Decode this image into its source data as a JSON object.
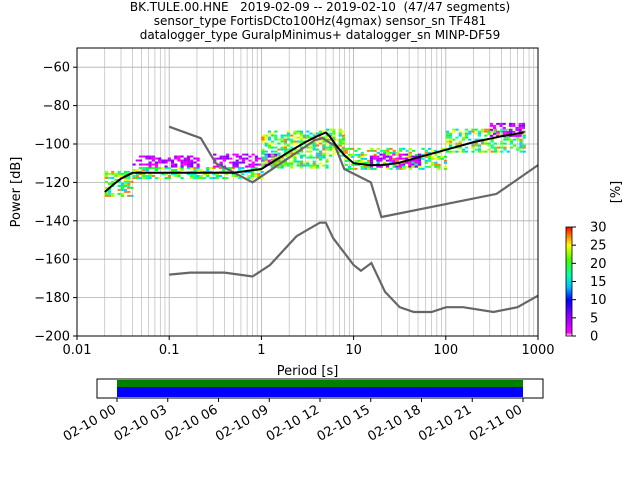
{
  "title_lines": [
    "BK.TULE.00.HNE   2019-02-09 -- 2019-02-10  (47/47 segments)",
    "sensor_type FortisDCto100Hz(4gmax) sensor_sn TF481",
    "datalogger_type GuralpMinimus+ datalogger_sn MINP-DF59"
  ],
  "chart_data": {
    "type": "heatmap",
    "xlabel": "Period [s]",
    "ylabel": "Power [dB]",
    "xscale": "log",
    "xlim": [
      0.01,
      1000
    ],
    "ylim": [
      -200,
      -50
    ],
    "x_ticks": [
      {
        "value": 0.01,
        "label": "0.01"
      },
      {
        "value": 0.1,
        "label": "0.1"
      },
      {
        "value": 1,
        "label": "1"
      },
      {
        "value": 10,
        "label": "10"
      },
      {
        "value": 100,
        "label": "100"
      },
      {
        "value": 1000,
        "label": "1000"
      }
    ],
    "y_ticks": [
      {
        "value": -60,
        "label": "−60"
      },
      {
        "value": -80,
        "label": "−80"
      },
      {
        "value": -100,
        "label": "−100"
      },
      {
        "value": -120,
        "label": "−120"
      },
      {
        "value": -140,
        "label": "−140"
      },
      {
        "value": -160,
        "label": "−160"
      },
      {
        "value": -180,
        "label": "−180"
      },
      {
        "value": -200,
        "label": "−200"
      }
    ],
    "grid": true,
    "colorbar": {
      "label": "[%]",
      "range": [
        0,
        30
      ],
      "ticks": [
        {
          "value": 0,
          "label": "0"
        },
        {
          "value": 5,
          "label": "5"
        },
        {
          "value": 10,
          "label": "10"
        },
        {
          "value": 15,
          "label": "15"
        },
        {
          "value": 20,
          "label": "20"
        },
        {
          "value": 25,
          "label": "25"
        },
        {
          "value": 30,
          "label": "30"
        }
      ]
    },
    "series": [
      {
        "role": "high-noise-model",
        "color": "#666666",
        "points": [
          [
            0.1,
            -91
          ],
          [
            0.22,
            -97
          ],
          [
            0.32,
            -110
          ],
          [
            0.8,
            -120
          ],
          [
            3.8,
            -98
          ],
          [
            4.6,
            -97
          ],
          [
            6.3,
            -101
          ],
          [
            7.9,
            -113
          ],
          [
            15.4,
            -120
          ],
          [
            20,
            -138
          ],
          [
            354.8,
            -126
          ],
          [
            1000,
            -111
          ]
        ]
      },
      {
        "role": "low-noise-model",
        "color": "#666666",
        "points": [
          [
            0.1,
            -168
          ],
          [
            0.17,
            -167
          ],
          [
            0.4,
            -167
          ],
          [
            0.8,
            -169
          ],
          [
            1.24,
            -163
          ],
          [
            2.4,
            -148
          ],
          [
            4.3,
            -141
          ],
          [
            5,
            -141
          ],
          [
            6,
            -149
          ],
          [
            10,
            -163
          ],
          [
            12,
            -166
          ],
          [
            15.6,
            -162
          ],
          [
            21.9,
            -177
          ],
          [
            31.6,
            -185
          ],
          [
            45,
            -187.5
          ],
          [
            70,
            -187.5
          ],
          [
            101,
            -185
          ],
          [
            154,
            -185
          ],
          [
            328,
            -187.5
          ],
          [
            600,
            -185
          ],
          [
            1000,
            -179
          ]
        ]
      },
      {
        "role": "mode",
        "color": "#000000",
        "points": [
          [
            0.02,
            -125
          ],
          [
            0.025,
            -121
          ],
          [
            0.03,
            -118
          ],
          [
            0.04,
            -115
          ],
          [
            0.06,
            -115
          ],
          [
            0.1,
            -115
          ],
          [
            0.2,
            -115
          ],
          [
            0.5,
            -115
          ],
          [
            1,
            -113
          ],
          [
            2,
            -104
          ],
          [
            3,
            -99
          ],
          [
            4,
            -96
          ],
          [
            5,
            -94
          ],
          [
            5.5,
            -96
          ],
          [
            6.5,
            -101
          ],
          [
            8,
            -106
          ],
          [
            10,
            -110
          ],
          [
            15,
            -111
          ],
          [
            20,
            -111
          ],
          [
            30,
            -110
          ],
          [
            50,
            -107
          ],
          [
            100,
            -103
          ],
          [
            200,
            -99
          ],
          [
            400,
            -96
          ],
          [
            700,
            -94
          ]
        ]
      }
    ],
    "heatmap_bands": [
      {
        "x_range": [
          0.02,
          0.04
        ],
        "y_range": [
          -127,
          -114
        ],
        "level": "high"
      },
      {
        "x_range": [
          0.04,
          1
        ],
        "y_range": [
          -118,
          -112
        ],
        "level": "high"
      },
      {
        "x_range": [
          0.04,
          0.2
        ],
        "y_range": [
          -112,
          -106
        ],
        "level": "low"
      },
      {
        "x_range": [
          0.3,
          1.5
        ],
        "y_range": [
          -112,
          -105
        ],
        "level": "low"
      },
      {
        "x_range": [
          1,
          5
        ],
        "y_range": [
          -112,
          -93
        ],
        "level": "high"
      },
      {
        "x_range": [
          5,
          8
        ],
        "y_range": [
          -106,
          -92
        ],
        "level": "high"
      },
      {
        "x_range": [
          8,
          100
        ],
        "y_range": [
          -113,
          -102
        ],
        "level": "high"
      },
      {
        "x_range": [
          15,
          50
        ],
        "y_range": [
          -112,
          -105
        ],
        "level": "low"
      },
      {
        "x_range": [
          100,
          700
        ],
        "y_range": [
          -104,
          -92
        ],
        "level": "high"
      },
      {
        "x_range": [
          300,
          700
        ],
        "y_range": [
          -96,
          -89
        ],
        "level": "low"
      }
    ]
  },
  "time_axis": {
    "tick_labels": [
      "02-10 00",
      "02-10 03",
      "02-10 06",
      "02-10 09",
      "02-10 12",
      "02-10 15",
      "02-10 18",
      "02-10 21",
      "02-11 00"
    ],
    "coverage_fraction": 1.0,
    "colors": {
      "coverage": "#0000ff",
      "data": "#008000"
    }
  }
}
